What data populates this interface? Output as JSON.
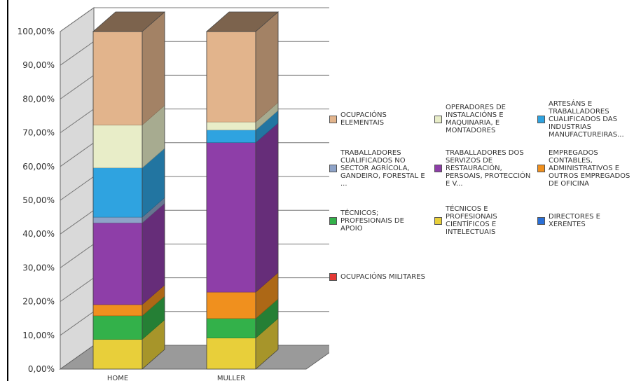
{
  "chart_data": {
    "type": "stacked-bar-3d",
    "categories": [
      "HOME",
      "MULLER"
    ],
    "ylim": [
      0,
      100
    ],
    "y_ticks": [
      "0,00%",
      "10,00%",
      "20,00%",
      "30,00%",
      "40,00%",
      "50,00%",
      "60,00%",
      "70,00%",
      "80,00%",
      "90,00%",
      "100,00%"
    ],
    "series": [
      {
        "name": "OCUPACIÓNS MILITARES",
        "color": "#e53935",
        "values": [
          0.0,
          0.0
        ]
      },
      {
        "name": "DIRECTORES E XERENTES",
        "color": "#2a6fd6",
        "values": [
          0.0,
          0.0
        ]
      },
      {
        "name": "TÉCNICOS E PROFESIONAIS CIENTÍFICOS E INTELECTUAIS",
        "color": "#e8cf3a",
        "values": [
          8.8,
          9.2
        ]
      },
      {
        "name": "TÉCNICOS; PROFESIONAIS DE APOIO",
        "color": "#33b14a",
        "values": [
          7.0,
          5.8
        ]
      },
      {
        "name": "EMPREGADOS CONTABLES, ADMINISTRATIVOS E OUTROS EMPREGADOS DE OFICINA",
        "color": "#f0901e",
        "values": [
          3.3,
          7.8
        ]
      },
      {
        "name": "TRABALLADORES DOS SERVIZOS DE RESTAURACIÓN, PERSOAIS, PROTECCIÓN E V...",
        "color": "#8e3ea8",
        "values": [
          24.2,
          44.3
        ]
      },
      {
        "name": "TRABALLADORES CUALIFICADOS NO SECTOR AGRÍCOLA, GANDEIRO, FORESTAL E ...",
        "color": "#8ea3c8",
        "values": [
          1.7,
          0.0
        ]
      },
      {
        "name": "ARTESÁNS E TRABALLADORES CUALIFICADOS DAS INDUSTRIAS MANUFACTUREIRAS...",
        "color": "#2fa3e0",
        "values": [
          14.6,
          3.7
        ]
      },
      {
        "name": "OPERADORES DE INSTALACIÓNS E MAQUINARIA, E MONTADORES",
        "color": "#e8edc8",
        "values": [
          12.7,
          2.4
        ]
      },
      {
        "name": "OCUPACIÓNS ELEMENTAIS",
        "color": "#e2b48c",
        "values": [
          27.7,
          26.8
        ]
      }
    ],
    "legend": [
      "OCUPACIÓNS ELEMENTAIS",
      "OPERADORES DE INSTALACIÓNS E MAQUINARIA, E MONTADORES",
      "ARTESÁNS E TRABALLADORES CUALIFICADOS DAS INDUSTRIAS MANUFACTUREIRAS...",
      "TRABALLADORES CUALIFICADOS NO SECTOR AGRÍCOLA, GANDEIRO, FORESTAL E ...",
      "TRABALLADORES DOS SERVIZOS DE RESTAURACIÓN, PERSOAIS, PROTECCIÓN E V...",
      "EMPREGADOS CONTABLES, ADMINISTRATIVOS E OUTROS EMPREGADOS DE OFICINA",
      "TÉCNICOS; PROFESIONAIS DE APOIO",
      "TÉCNICOS E PROFESIONAIS CIENTÍFICOS E INTELECTUAIS",
      "DIRECTORES E XERENTES",
      "OCUPACIÓNS MILITARES"
    ],
    "grid": true,
    "legend_position": "right"
  }
}
